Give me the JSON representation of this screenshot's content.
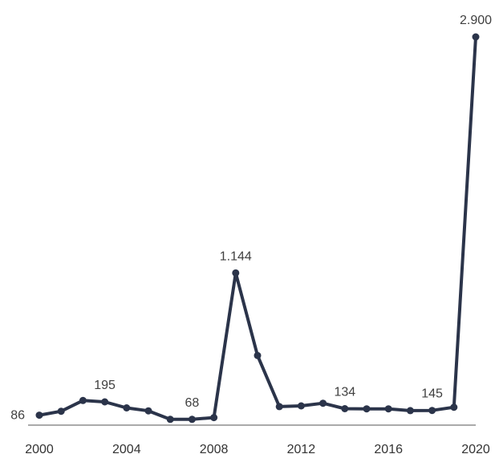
{
  "chart_data": {
    "type": "line",
    "title": "",
    "xlabel": "",
    "ylabel": "",
    "x": [
      2000,
      2001,
      2002,
      2003,
      2004,
      2005,
      2006,
      2007,
      2008,
      2009,
      2010,
      2011,
      2012,
      2013,
      2014,
      2015,
      2016,
      2017,
      2018,
      2019,
      2020
    ],
    "series": [
      {
        "values": [
          86,
          115,
          195,
          185,
          140,
          118,
          55,
          55,
          68,
          1144,
          530,
          150,
          155,
          175,
          134,
          133,
          133,
          120,
          121,
          145,
          2900
        ]
      }
    ],
    "xticks": [
      "2000",
      "2004",
      "2008",
      "2012",
      "2016",
      "2020"
    ],
    "xlim": [
      2000,
      2020
    ],
    "ylim": [
      0,
      2900
    ],
    "y_axis_visible": false,
    "grid": false,
    "legend": "none",
    "data_labels": [
      {
        "x": 2000,
        "text": "86"
      },
      {
        "x": 2003,
        "text": "195"
      },
      {
        "x": 2007,
        "text": "68"
      },
      {
        "x": 2009,
        "text": "1.144"
      },
      {
        "x": 2014,
        "text": "134"
      },
      {
        "x": 2018,
        "text": "145"
      },
      {
        "x": 2020,
        "text": "2.900"
      }
    ],
    "colors": {
      "line": "#2b344a",
      "axis": "#555555",
      "text": "#404040"
    }
  }
}
